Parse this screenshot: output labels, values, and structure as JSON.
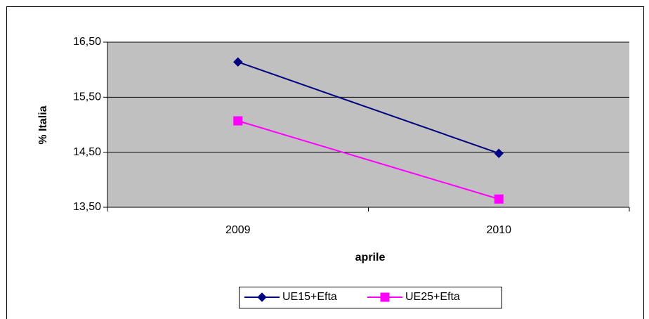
{
  "chart_data": {
    "type": "line",
    "x_label": "aprile",
    "y_label": "% Italia",
    "categories": [
      "2009",
      "2010"
    ],
    "series": [
      {
        "name": "UE15+Efta",
        "color": "#000080",
        "marker": "diamond",
        "values": [
          16.14,
          14.48
        ]
      },
      {
        "name": "UE25+Efta",
        "color": "#ff00ff",
        "marker": "square",
        "values": [
          15.07,
          13.65
        ]
      }
    ],
    "ylim": [
      13.5,
      16.5
    ],
    "yticks": [
      {
        "value": 13.5,
        "label": "13,50"
      },
      {
        "value": 14.5,
        "label": "14,50"
      },
      {
        "value": 15.5,
        "label": "15,50"
      },
      {
        "value": 16.5,
        "label": "16,50"
      }
    ],
    "grid": true,
    "legend": "bottom"
  }
}
